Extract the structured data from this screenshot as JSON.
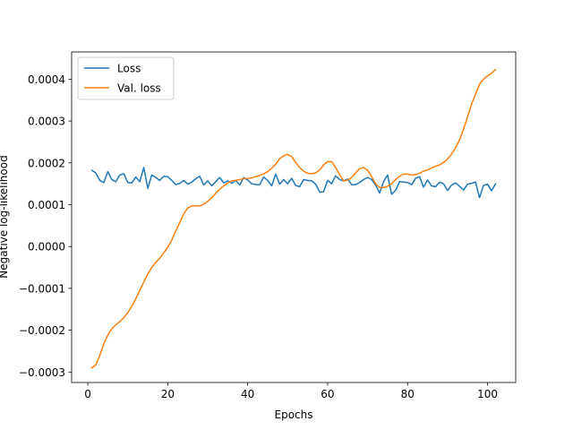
{
  "chart_data": {
    "type": "line",
    "title": "",
    "xlabel": "Epochs",
    "ylabel": "Negative log-likelihood",
    "xlim": [
      -4.05,
      107.05
    ],
    "ylim": [
      -0.000325,
      0.000465
    ],
    "xticks": [
      0,
      20,
      40,
      60,
      80,
      100
    ],
    "xtick_labels": [
      "0",
      "20",
      "40",
      "60",
      "80",
      "100"
    ],
    "yticks": [
      -0.0003,
      -0.0002,
      -0.0001,
      0.0,
      0.0001,
      0.0002,
      0.0003,
      0.0004
    ],
    "ytick_labels": [
      "−0.0003",
      "−0.0002",
      "−0.0001",
      "0.0000",
      "0.0001",
      "0.0002",
      "0.0003",
      "0.0004"
    ],
    "grid": false,
    "legend_position": "upper-left",
    "x": [
      1,
      2,
      3,
      4,
      5,
      6,
      7,
      8,
      9,
      10,
      11,
      12,
      13,
      14,
      15,
      16,
      17,
      18,
      19,
      20,
      21,
      22,
      23,
      24,
      25,
      26,
      27,
      28,
      29,
      30,
      31,
      32,
      33,
      34,
      35,
      36,
      37,
      38,
      39,
      40,
      41,
      42,
      43,
      44,
      45,
      46,
      47,
      48,
      49,
      50,
      51,
      52,
      53,
      54,
      55,
      56,
      57,
      58,
      59,
      60,
      61,
      62,
      63,
      64,
      65,
      66,
      67,
      68,
      69,
      70,
      71,
      72,
      73,
      74,
      75,
      76,
      77,
      78,
      79,
      80,
      81,
      82,
      83,
      84,
      85,
      86,
      87,
      88,
      89,
      90,
      91,
      92,
      93,
      94,
      95,
      96,
      97,
      98,
      99,
      100,
      101,
      102
    ],
    "series": [
      {
        "name": "Loss",
        "color": "#1f77b4",
        "values": [
          0.000182,
          0.000176,
          0.000158,
          0.000153,
          0.000179,
          0.00016,
          0.000155,
          0.000171,
          0.000174,
          0.000153,
          0.000152,
          0.000166,
          0.000155,
          0.000189,
          0.000139,
          0.000171,
          0.000165,
          0.000158,
          0.000168,
          0.000167,
          0.000158,
          0.000148,
          0.000151,
          0.000158,
          0.000149,
          0.000154,
          0.000162,
          0.000168,
          0.000147,
          0.000157,
          0.000145,
          0.000155,
          0.000165,
          0.000152,
          0.000157,
          0.000151,
          0.000158,
          0.000147,
          0.000165,
          0.000159,
          0.00015,
          0.000148,
          0.000148,
          0.000166,
          0.000158,
          0.000145,
          0.000173,
          0.000149,
          0.00016,
          0.00015,
          0.000163,
          0.000146,
          0.000143,
          0.00016,
          0.000158,
          0.000157,
          0.000149,
          0.00013,
          0.000131,
          0.000158,
          0.00015,
          0.000169,
          0.00016,
          0.000157,
          0.000161,
          0.000148,
          0.000148,
          0.000153,
          0.00016,
          0.000165,
          0.00016,
          0.000147,
          0.000128,
          0.000155,
          0.000171,
          0.000125,
          0.000134,
          0.000155,
          0.000154,
          0.000153,
          0.000148,
          0.000163,
          0.000167,
          0.000142,
          0.000159,
          0.000145,
          0.000143,
          0.000154,
          0.00015,
          0.000134,
          0.000147,
          0.000152,
          0.000144,
          0.000135,
          0.000149,
          0.000151,
          0.000154,
          0.000117,
          0.000146,
          0.000149,
          0.000133,
          0.00015
        ]
      },
      {
        "name": "Val. loss",
        "color": "#ff7f0e",
        "values": [
          -0.00029,
          -0.000283,
          -0.00026,
          -0.000232,
          -0.000212,
          -0.000197,
          -0.000187,
          -0.00018,
          -0.00017,
          -0.000158,
          -0.000143,
          -0.000125,
          -0.000105,
          -8.5e-05,
          -6.6e-05,
          -5e-05,
          -3.8e-05,
          -2.8e-05,
          -1.5e-05,
          -2e-06,
          1.5e-05,
          3.7e-05,
          5.7e-05,
          7.8e-05,
          9.2e-05,
          9.7e-05,
          9.7e-05,
          9.7e-05,
          0.000101,
          0.000108,
          0.000117,
          0.000127,
          0.000137,
          0.000145,
          0.000152,
          0.000157,
          0.000158,
          0.00016,
          0.000162,
          0.000163,
          0.000164,
          0.000167,
          0.00017,
          0.000174,
          0.000179,
          0.000187,
          0.000197,
          0.00021,
          0.000217,
          0.00022,
          0.000215,
          0.000201,
          0.000189,
          0.00018,
          0.000175,
          0.000174,
          0.000176,
          0.000183,
          0.000195,
          0.000203,
          0.000203,
          0.000189,
          0.000172,
          0.000157,
          0.000159,
          0.000165,
          0.000176,
          0.000186,
          0.000189,
          0.000182,
          0.000167,
          0.00015,
          0.000141,
          0.000141,
          0.000144,
          0.00015,
          0.00016,
          0.000168,
          0.000173,
          0.000173,
          0.000171,
          0.000172,
          0.000175,
          0.00018,
          0.000183,
          0.000188,
          0.000192,
          0.000195,
          0.000201,
          0.000209,
          0.000221,
          0.000236,
          0.000255,
          0.00028,
          0.00031,
          0.00034,
          0.000364,
          0.000388,
          0.0004,
          0.000408,
          0.000414,
          0.000423
        ]
      }
    ]
  }
}
